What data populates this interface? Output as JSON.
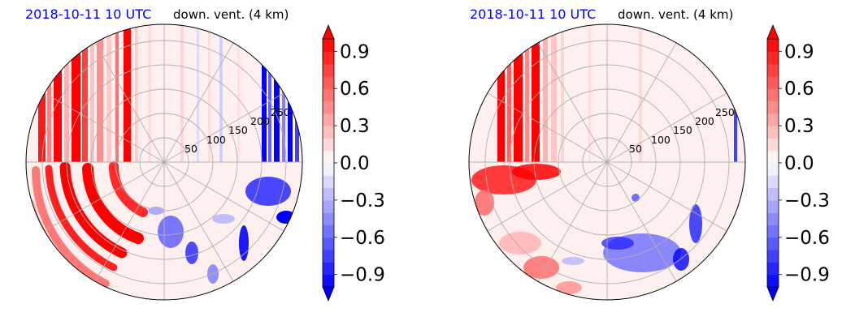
{
  "colors": {
    "positive": "#ff0000",
    "negative": "#0000ff",
    "neutral": "#ffffff",
    "grid": "#b0b0b0",
    "title_date": "#0000ff",
    "title_var": "#000000"
  },
  "chart_data": [
    {
      "type": "heatmap",
      "projection": "polar",
      "title_left": "2018-10-11 10 UTC",
      "title_right": "down. vent. (4 km)",
      "radial_ticks": [
        50,
        100,
        150,
        200,
        250
      ],
      "radial_tick_labels": [
        "50",
        "100",
        "150",
        "200",
        "250"
      ],
      "r_max": 280,
      "grid": true,
      "colorbar": {
        "vmin": -1.0,
        "vmax": 1.0,
        "extend": "both",
        "ticks": [
          -0.9,
          -0.6,
          -0.3,
          0.0,
          0.3,
          0.6,
          0.9
        ],
        "tick_labels": [
          "−0.9",
          "−0.6",
          "−0.3",
          "0.0",
          "0.3",
          "0.6",
          "0.9"
        ],
        "colormap": "bwr"
      }
    },
    {
      "type": "heatmap",
      "projection": "polar",
      "title_left": "2018-10-11 10 UTC",
      "title_right": "down. vent. (4 km)",
      "radial_ticks": [
        50,
        100,
        150,
        200,
        250
      ],
      "radial_tick_labels": [
        "50",
        "100",
        "150",
        "200",
        "250"
      ],
      "r_max": 280,
      "grid": true,
      "colorbar": {
        "vmin": -1.0,
        "vmax": 1.0,
        "extend": "both",
        "ticks": [
          -0.9,
          -0.6,
          -0.3,
          0.0,
          0.3,
          0.6,
          0.9
        ],
        "tick_labels": [
          "−0.9",
          "−0.6",
          "−0.3",
          "0.0",
          "0.3",
          "0.6",
          "0.9"
        ],
        "colormap": "bwr"
      }
    }
  ]
}
